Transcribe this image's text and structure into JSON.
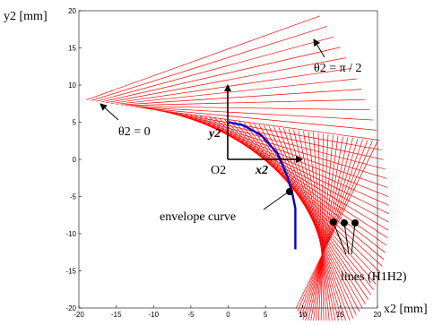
{
  "chart_data": {
    "type": "line",
    "xlabel": "x2 [mm]",
    "ylabel": "y2 [mm]",
    "xlim": [
      -20,
      20
    ],
    "ylim": [
      -20,
      20
    ],
    "x_ticks": [
      "-20",
      "-15",
      "-10",
      "-5",
      "0",
      "5",
      "10",
      "15",
      "20"
    ],
    "y_ticks": [
      "20",
      "15",
      "10",
      "5",
      "0",
      "-5",
      "-10",
      "-15",
      "-20"
    ],
    "grid": false,
    "series": [
      {
        "kind": "line family",
        "color": "#ff0000",
        "line_count": 60,
        "theta_start": "0",
        "theta_end": "π/2",
        "lines_start": [
          [
            -19.0,
            8.0
          ],
          [
            12.3,
            19.3
          ],
          [
            20.0,
            2.4
          ],
          [
            9.1,
            -20.0
          ]
        ]
      },
      {
        "name": "envelope curve",
        "color": "#0000cc",
        "x": [
          0.0,
          2.0,
          4.5,
          6.6,
          7.9,
          8.6,
          9.0,
          9.0,
          9.0,
          9.0
        ],
        "y": [
          5.0,
          4.6,
          3.2,
          0.8,
          -2.2,
          -4.6,
          -6.6,
          -8.6,
          -10.8,
          -12.1
        ]
      }
    ],
    "annotations": {
      "theta_0": "θ2 = 0",
      "theta_pi2": "θ2 = π / 2",
      "frame_origin": "O2",
      "frame_x": "x2",
      "frame_y": "y2",
      "envelope": "envelope curve",
      "lines": "lines (H1H2)"
    },
    "frame_arrow_length": 10.0
  }
}
